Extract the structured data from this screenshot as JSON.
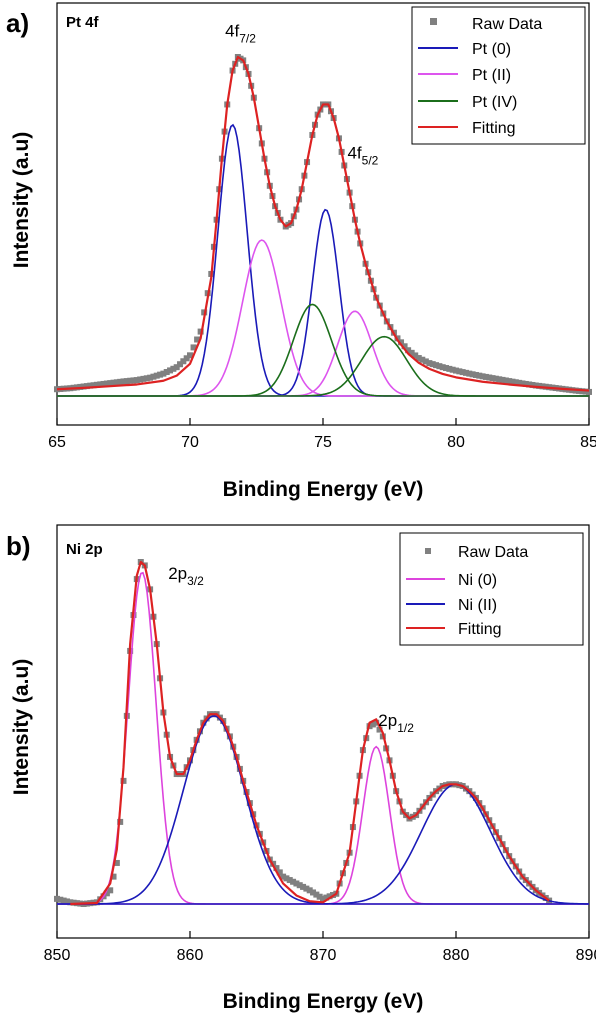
{
  "chart_data": [
    {
      "type": "line",
      "panel_label": "a)",
      "inset_title": "Pt 4f",
      "xlabel": "Binding Energy (eV)",
      "ylabel": "Intensity (a.u)",
      "xlim": [
        65,
        85
      ],
      "x_ticks": [
        65,
        70,
        75,
        80,
        85
      ],
      "ylim": [
        0,
        1
      ],
      "y_ticks_shown": false,
      "grid": false,
      "legend_position": "top-right",
      "annotations": [
        {
          "base": "4f",
          "sub": "7/2",
          "x": 71.9,
          "y": 1.06
        },
        {
          "base": "4f",
          "sub": "5/2",
          "x": 76.5,
          "y": 0.7
        }
      ],
      "series": [
        {
          "name": "Raw Data",
          "kind": "scatter",
          "color": "#808080",
          "points": [
            [
              65.0,
              0.02
            ],
            [
              65.5,
              0.023
            ],
            [
              66.0,
              0.028
            ],
            [
              66.5,
              0.033
            ],
            [
              67.0,
              0.038
            ],
            [
              67.5,
              0.043
            ],
            [
              68.0,
              0.047
            ],
            [
              68.5,
              0.054
            ],
            [
              69.0,
              0.066
            ],
            [
              69.5,
              0.085
            ],
            [
              70.0,
              0.12
            ],
            [
              70.4,
              0.19
            ],
            [
              70.8,
              0.36
            ],
            [
              71.0,
              0.52
            ],
            [
              71.2,
              0.7
            ],
            [
              71.4,
              0.86
            ],
            [
              71.6,
              0.96
            ],
            [
              71.8,
              1.0
            ],
            [
              72.0,
              0.99
            ],
            [
              72.2,
              0.95
            ],
            [
              72.4,
              0.88
            ],
            [
              72.6,
              0.79
            ],
            [
              72.8,
              0.7
            ],
            [
              73.0,
              0.62
            ],
            [
              73.2,
              0.56
            ],
            [
              73.4,
              0.52
            ],
            [
              73.6,
              0.5
            ],
            [
              73.8,
              0.51
            ],
            [
              74.0,
              0.55
            ],
            [
              74.2,
              0.61
            ],
            [
              74.4,
              0.69
            ],
            [
              74.6,
              0.77
            ],
            [
              74.8,
              0.83
            ],
            [
              75.0,
              0.86
            ],
            [
              75.2,
              0.86
            ],
            [
              75.4,
              0.82
            ],
            [
              75.6,
              0.76
            ],
            [
              75.8,
              0.68
            ],
            [
              76.0,
              0.6
            ],
            [
              76.2,
              0.52
            ],
            [
              76.4,
              0.45
            ],
            [
              76.6,
              0.39
            ],
            [
              76.8,
              0.34
            ],
            [
              77.0,
              0.29
            ],
            [
              77.4,
              0.22
            ],
            [
              77.8,
              0.17
            ],
            [
              78.2,
              0.135
            ],
            [
              78.6,
              0.112
            ],
            [
              79.0,
              0.097
            ],
            [
              79.5,
              0.085
            ],
            [
              80.0,
              0.075
            ],
            [
              80.5,
              0.066
            ],
            [
              81.0,
              0.058
            ],
            [
              81.5,
              0.051
            ],
            [
              82.0,
              0.044
            ],
            [
              82.5,
              0.037
            ],
            [
              83.0,
              0.031
            ],
            [
              83.5,
              0.026
            ],
            [
              84.0,
              0.021
            ],
            [
              84.5,
              0.016
            ],
            [
              85.0,
              0.012
            ]
          ]
        },
        {
          "name": "Pt (0)",
          "kind": "line",
          "color": "#1a1ab8",
          "peaks": [
            {
              "center": 71.6,
              "height": 0.8,
              "width": 0.55
            },
            {
              "center": 75.1,
              "height": 0.55,
              "width": 0.5
            }
          ]
        },
        {
          "name": "Pt (II)",
          "kind": "line",
          "color": "#dd55ee",
          "peaks": [
            {
              "center": 72.7,
              "height": 0.46,
              "width": 0.72
            },
            {
              "center": 76.2,
              "height": 0.25,
              "width": 0.65
            }
          ]
        },
        {
          "name": "Pt (IV)",
          "kind": "line",
          "color": "#1b6e1b",
          "peaks": [
            {
              "center": 74.6,
              "height": 0.27,
              "width": 0.72
            },
            {
              "center": 77.3,
              "height": 0.175,
              "width": 0.85
            }
          ]
        },
        {
          "name": "Fitting",
          "kind": "line",
          "color": "#dd2222",
          "points": [
            [
              65.0,
              0.02
            ],
            [
              66.0,
              0.024
            ],
            [
              67.0,
              0.029
            ],
            [
              68.0,
              0.034
            ],
            [
              69.0,
              0.045
            ],
            [
              69.5,
              0.06
            ],
            [
              70.0,
              0.095
            ],
            [
              70.4,
              0.17
            ],
            [
              70.8,
              0.35
            ],
            [
              71.0,
              0.52
            ],
            [
              71.2,
              0.7
            ],
            [
              71.4,
              0.86
            ],
            [
              71.6,
              0.96
            ],
            [
              71.8,
              1.0
            ],
            [
              72.0,
              0.99
            ],
            [
              72.2,
              0.95
            ],
            [
              72.4,
              0.88
            ],
            [
              72.6,
              0.79
            ],
            [
              72.8,
              0.7
            ],
            [
              73.0,
              0.62
            ],
            [
              73.2,
              0.56
            ],
            [
              73.4,
              0.52
            ],
            [
              73.6,
              0.5
            ],
            [
              73.8,
              0.51
            ],
            [
              74.0,
              0.55
            ],
            [
              74.2,
              0.61
            ],
            [
              74.4,
              0.69
            ],
            [
              74.6,
              0.77
            ],
            [
              74.8,
              0.83
            ],
            [
              75.0,
              0.86
            ],
            [
              75.2,
              0.86
            ],
            [
              75.4,
              0.82
            ],
            [
              75.6,
              0.76
            ],
            [
              75.8,
              0.68
            ],
            [
              76.0,
              0.6
            ],
            [
              76.2,
              0.52
            ],
            [
              76.4,
              0.45
            ],
            [
              76.6,
              0.39
            ],
            [
              76.8,
              0.34
            ],
            [
              77.0,
              0.29
            ],
            [
              77.4,
              0.22
            ],
            [
              77.8,
              0.165
            ],
            [
              78.2,
              0.125
            ],
            [
              78.6,
              0.098
            ],
            [
              79.0,
              0.08
            ],
            [
              79.5,
              0.065
            ],
            [
              80.0,
              0.055
            ],
            [
              81.0,
              0.042
            ],
            [
              82.0,
              0.034
            ],
            [
              83.0,
              0.027
            ],
            [
              84.0,
              0.021
            ],
            [
              85.0,
              0.016
            ]
          ]
        }
      ]
    },
    {
      "type": "line",
      "panel_label": "b)",
      "inset_title": "Ni 2p",
      "xlabel": "Binding Energy (eV)",
      "ylabel": "Intensity (a.u)",
      "xlim": [
        850,
        890
      ],
      "x_ticks": [
        850,
        860,
        870,
        880,
        890
      ],
      "ylim": [
        0,
        1
      ],
      "y_ticks_shown": false,
      "grid": false,
      "legend_position": "top-right",
      "annotations": [
        {
          "base": "2p",
          "sub": "3/2",
          "x": 859.7,
          "y": 0.95
        },
        {
          "base": "2p",
          "sub": "1/2",
          "x": 875.5,
          "y": 0.52
        }
      ],
      "series": [
        {
          "name": "Raw Data",
          "kind": "scatter",
          "color": "#808080",
          "points": [
            [
              850.0,
              0.015
            ],
            [
              851.0,
              0.005
            ],
            [
              852.0,
              0.0
            ],
            [
              853.0,
              0.005
            ],
            [
              854.0,
              0.04
            ],
            [
              854.5,
              0.12
            ],
            [
              855.0,
              0.36
            ],
            [
              855.5,
              0.74
            ],
            [
              856.0,
              0.95
            ],
            [
              856.3,
              1.0
            ],
            [
              856.6,
              0.99
            ],
            [
              857.0,
              0.92
            ],
            [
              857.5,
              0.76
            ],
            [
              858.0,
              0.56
            ],
            [
              858.5,
              0.43
            ],
            [
              859.0,
              0.38
            ],
            [
              859.5,
              0.38
            ],
            [
              860.0,
              0.42
            ],
            [
              860.5,
              0.48
            ],
            [
              861.0,
              0.53
            ],
            [
              861.5,
              0.555
            ],
            [
              862.0,
              0.555
            ],
            [
              862.5,
              0.535
            ],
            [
              863.0,
              0.49
            ],
            [
              863.5,
              0.43
            ],
            [
              864.0,
              0.36
            ],
            [
              865.0,
              0.23
            ],
            [
              866.0,
              0.13
            ],
            [
              867.0,
              0.08
            ],
            [
              868.0,
              0.06
            ],
            [
              869.0,
              0.04
            ],
            [
              870.0,
              0.015
            ],
            [
              871.0,
              0.03
            ],
            [
              872.0,
              0.15
            ],
            [
              872.5,
              0.3
            ],
            [
              873.0,
              0.45
            ],
            [
              873.5,
              0.52
            ],
            [
              874.0,
              0.53
            ],
            [
              874.5,
              0.49
            ],
            [
              875.0,
              0.42
            ],
            [
              875.5,
              0.33
            ],
            [
              876.0,
              0.27
            ],
            [
              876.5,
              0.25
            ],
            [
              877.0,
              0.26
            ],
            [
              877.5,
              0.285
            ],
            [
              878.0,
              0.31
            ],
            [
              878.5,
              0.33
            ],
            [
              879.0,
              0.345
            ],
            [
              879.5,
              0.35
            ],
            [
              880.0,
              0.35
            ],
            [
              880.5,
              0.345
            ],
            [
              881.0,
              0.33
            ],
            [
              881.5,
              0.31
            ],
            [
              882.0,
              0.28
            ],
            [
              883.0,
              0.21
            ],
            [
              884.0,
              0.14
            ],
            [
              885.0,
              0.08
            ],
            [
              886.0,
              0.04
            ],
            [
              887.0,
              0.01
            ]
          ]
        },
        {
          "name": "Ni (0)",
          "kind": "line",
          "color": "#dd44dd",
          "peaks": [
            {
              "center": 856.4,
              "height": 0.97,
              "width": 1.05
            },
            {
              "center": 874.0,
              "height": 0.46,
              "width": 1.0
            }
          ]
        },
        {
          "name": "Ni (II)",
          "kind": "line",
          "color": "#1a1ab8",
          "peaks": [
            {
              "center": 861.8,
              "height": 0.55,
              "width": 2.3
            },
            {
              "center": 880.0,
              "height": 0.35,
              "width": 2.6
            }
          ]
        },
        {
          "name": "Fitting",
          "kind": "line",
          "color": "#dd2222",
          "points": [
            [
              851.0,
              0.0
            ],
            [
              853.0,
              0.003
            ],
            [
              854.0,
              0.06
            ],
            [
              854.5,
              0.16
            ],
            [
              855.0,
              0.4
            ],
            [
              855.5,
              0.76
            ],
            [
              856.0,
              0.96
            ],
            [
              856.3,
              1.0
            ],
            [
              856.6,
              0.99
            ],
            [
              857.0,
              0.92
            ],
            [
              857.5,
              0.76
            ],
            [
              858.0,
              0.56
            ],
            [
              858.5,
              0.43
            ],
            [
              859.0,
              0.38
            ],
            [
              859.5,
              0.38
            ],
            [
              860.0,
              0.42
            ],
            [
              860.5,
              0.48
            ],
            [
              861.0,
              0.53
            ],
            [
              861.5,
              0.555
            ],
            [
              862.0,
              0.555
            ],
            [
              862.5,
              0.535
            ],
            [
              863.0,
              0.49
            ],
            [
              863.5,
              0.43
            ],
            [
              864.0,
              0.36
            ],
            [
              865.0,
              0.23
            ],
            [
              866.0,
              0.13
            ],
            [
              867.0,
              0.06
            ],
            [
              868.0,
              0.025
            ],
            [
              869.0,
              0.008
            ],
            [
              870.0,
              0.005
            ],
            [
              871.0,
              0.03
            ],
            [
              872.0,
              0.15
            ],
            [
              872.5,
              0.3
            ],
            [
              873.0,
              0.45
            ],
            [
              873.5,
              0.53
            ],
            [
              874.0,
              0.54
            ],
            [
              874.5,
              0.5
            ],
            [
              875.0,
              0.42
            ],
            [
              875.5,
              0.33
            ],
            [
              876.0,
              0.27
            ],
            [
              876.5,
              0.25
            ],
            [
              877.0,
              0.26
            ],
            [
              877.5,
              0.285
            ],
            [
              878.0,
              0.31
            ],
            [
              878.5,
              0.33
            ],
            [
              879.0,
              0.345
            ],
            [
              879.5,
              0.35
            ],
            [
              880.0,
              0.35
            ],
            [
              880.5,
              0.345
            ],
            [
              881.0,
              0.33
            ],
            [
              881.5,
              0.31
            ],
            [
              882.0,
              0.28
            ],
            [
              883.0,
              0.21
            ],
            [
              884.0,
              0.14
            ],
            [
              885.0,
              0.08
            ],
            [
              886.0,
              0.04
            ],
            [
              887.0,
              0.01
            ]
          ]
        }
      ]
    }
  ]
}
